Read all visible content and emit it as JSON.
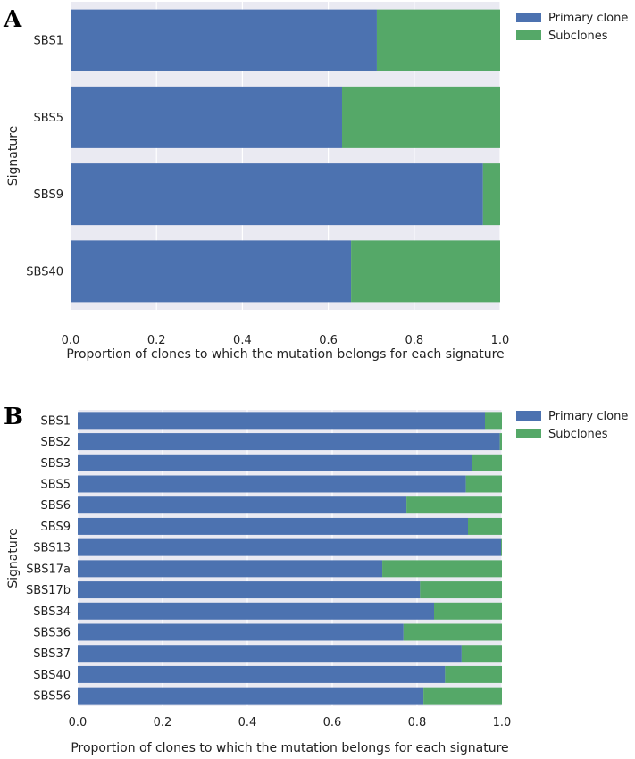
{
  "chart_data": [
    {
      "panel_label": "A",
      "type": "bar",
      "orientation": "horizontal",
      "stacked": true,
      "categories": [
        "SBS1",
        "SBS5",
        "SBS9",
        "SBS40"
      ],
      "series": [
        {
          "name": "Primary clone",
          "color": "#4c72b0",
          "values": [
            0.713,
            0.632,
            0.96,
            0.653
          ]
        },
        {
          "name": "Subclones",
          "color": "#55a868",
          "values": [
            0.287,
            0.368,
            0.04,
            0.347
          ]
        }
      ],
      "xlabel": "Proportion of clones to which the mutation belongs for each signature",
      "ylabel": "Signature",
      "xlim": [
        0,
        1.0
      ],
      "xticks": [
        "0.0",
        "0.2",
        "0.4",
        "0.6",
        "0.8",
        "1.0"
      ],
      "legend_position": "top-right",
      "grid": true
    },
    {
      "panel_label": "B",
      "type": "bar",
      "orientation": "horizontal",
      "stacked": true,
      "categories": [
        "SBS1",
        "SBS2",
        "SBS3",
        "SBS5",
        "SBS6",
        "SBS9",
        "SBS13",
        "SBS17a",
        "SBS17b",
        "SBS34",
        "SBS36",
        "SBS37",
        "SBS40",
        "SBS56"
      ],
      "series": [
        {
          "name": "Primary clone",
          "color": "#4c72b0",
          "values": [
            0.96,
            0.995,
            0.93,
            0.915,
            0.775,
            0.92,
            0.998,
            0.718,
            0.807,
            0.84,
            0.768,
            0.905,
            0.866,
            0.815
          ]
        },
        {
          "name": "Subclones",
          "color": "#55a868",
          "values": [
            0.04,
            0.005,
            0.07,
            0.085,
            0.225,
            0.08,
            0.002,
            0.282,
            0.193,
            0.16,
            0.232,
            0.095,
            0.134,
            0.185
          ]
        }
      ],
      "xlabel": "Proportion of clones to which the mutation belongs for each signature",
      "ylabel": "Signature",
      "xlim": [
        0,
        1.0
      ],
      "xticks": [
        "0.0",
        "0.2",
        "0.4",
        "0.6",
        "0.8",
        "1.0"
      ],
      "legend_position": "top-right",
      "grid": true
    }
  ]
}
